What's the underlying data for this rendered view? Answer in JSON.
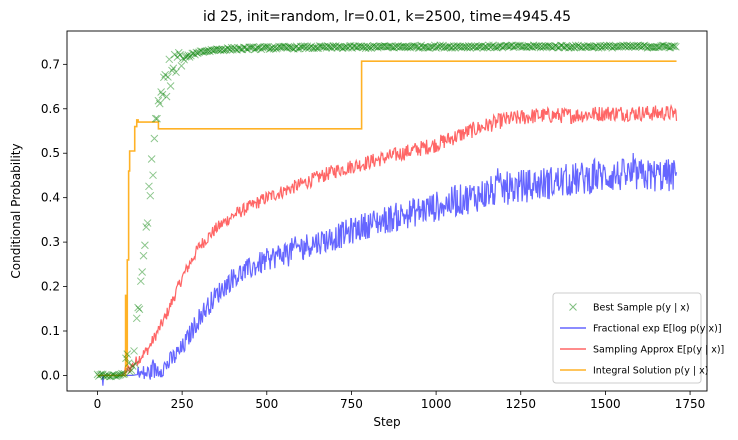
{
  "chart_data": {
    "type": "line",
    "title": "id 25, init=random, lr=0.01, k=2500, time=4945.45",
    "xlabel": "Step",
    "ylabel": "Conditional Probability",
    "xlim": [
      -90,
      1800
    ],
    "ylim": [
      -0.035,
      0.775
    ],
    "xticks": [
      0,
      250,
      500,
      750,
      1000,
      1250,
      1500,
      1750
    ],
    "yticks": [
      0.0,
      0.1,
      0.2,
      0.3,
      0.4,
      0.5,
      0.6,
      0.7
    ],
    "grid": false,
    "legend_position": "lower-right",
    "n_steps": 1710,
    "series": [
      {
        "name": "Best Sample p(y | x)",
        "color": "#008000",
        "style": "x-markers",
        "x": [
          0,
          60,
          80,
          100,
          110,
          120,
          130,
          140,
          150,
          160,
          170,
          180,
          190,
          200,
          220,
          240,
          260,
          280,
          300,
          350,
          400,
          500,
          600,
          800,
          1000,
          1710
        ],
        "values": [
          0.0,
          0.0,
          0.005,
          0.02,
          0.05,
          0.12,
          0.22,
          0.3,
          0.38,
          0.46,
          0.53,
          0.59,
          0.63,
          0.66,
          0.69,
          0.705,
          0.715,
          0.722,
          0.728,
          0.733,
          0.735,
          0.737,
          0.738,
          0.739,
          0.74,
          0.74
        ]
      },
      {
        "name": "Fractional exp E[log p(y|x)]",
        "color": "#0000ff",
        "style": "noisy-line",
        "x": [
          0,
          100,
          150,
          200,
          250,
          300,
          350,
          400,
          500,
          600,
          700,
          800,
          900,
          1000,
          1100,
          1200,
          1300,
          1400,
          1500,
          1600,
          1710
        ],
        "values": [
          0.0,
          0.0,
          0.005,
          0.02,
          0.06,
          0.13,
          0.18,
          0.22,
          0.26,
          0.29,
          0.31,
          0.34,
          0.36,
          0.38,
          0.4,
          0.42,
          0.43,
          0.44,
          0.45,
          0.45,
          0.45
        ]
      },
      {
        "name": "Sampling Approx E[p(y | x)]",
        "color": "#ff0000",
        "style": "noisy-line",
        "x": [
          0,
          70,
          100,
          150,
          200,
          250,
          300,
          350,
          400,
          450,
          500,
          600,
          700,
          800,
          900,
          1000,
          1100,
          1200,
          1300,
          1400,
          1500,
          1600,
          1710
        ],
        "values": [
          0.0,
          0.0,
          0.02,
          0.06,
          0.13,
          0.22,
          0.29,
          0.33,
          0.36,
          0.38,
          0.4,
          0.43,
          0.46,
          0.48,
          0.5,
          0.52,
          0.55,
          0.575,
          0.585,
          0.585,
          0.59,
          0.59,
          0.59
        ]
      },
      {
        "name": "Integral Solution p(y | x)",
        "color": "#ffa500",
        "style": "step",
        "x": [
          0,
          80,
          83,
          86,
          88,
          92,
          95,
          100,
          106,
          110,
          116,
          120,
          126,
          160,
          180,
          185,
          190,
          775,
          780,
          1710
        ],
        "values": [
          0.0,
          0.0,
          0.18,
          0.02,
          0.26,
          0.46,
          0.505,
          0.505,
          0.505,
          0.56,
          0.575,
          0.57,
          0.57,
          0.57,
          0.555,
          0.555,
          0.555,
          0.555,
          0.707,
          0.707
        ]
      }
    ]
  }
}
